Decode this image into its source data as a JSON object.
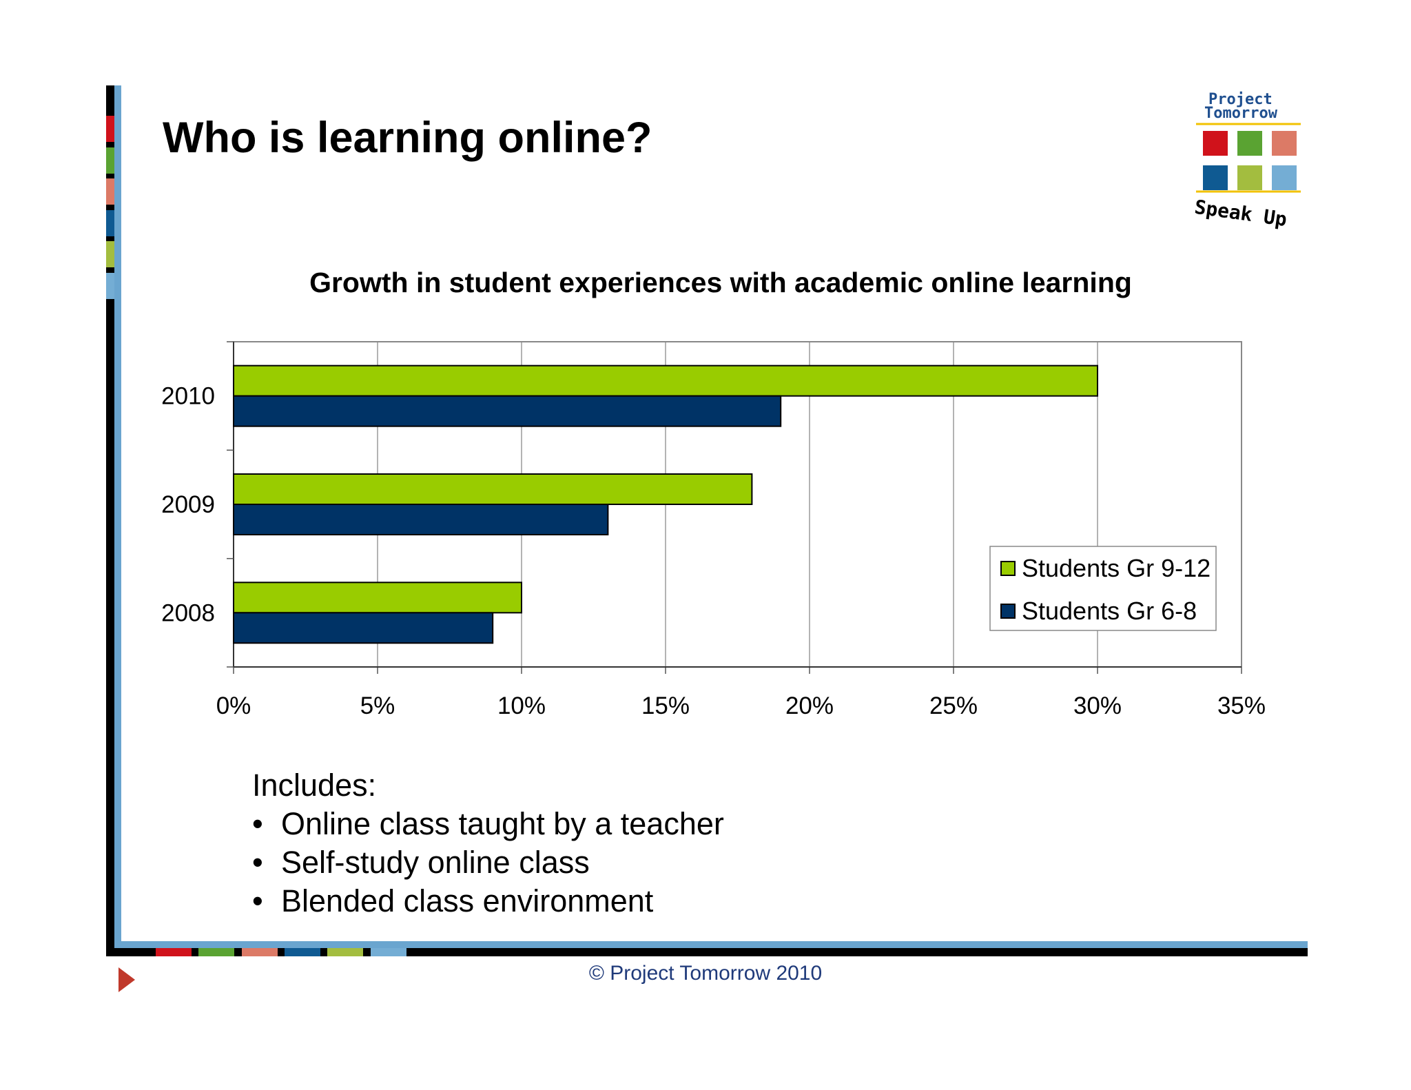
{
  "slide": {
    "title": "Who is learning online?",
    "includes_heading": "Includes:",
    "includes_items": [
      "Online class taught by a teacher",
      "Self-study online class",
      "Blended class environment"
    ],
    "footer": "© Project Tomorrow 2010"
  },
  "logo": {
    "line1": "Project",
    "line2": "Tomorrow",
    "tagline": "Speak Up",
    "swatch_colors": [
      "#d0121b",
      "#5aa332",
      "#dc7a66",
      "#0f5a92",
      "#a3bd3f",
      "#74add4"
    ]
  },
  "chart_data": {
    "type": "bar",
    "orientation": "horizontal",
    "title": "Growth in student experiences with academic online learning",
    "xlabel": "",
    "ylabel": "",
    "categories": [
      "2010",
      "2009",
      "2008"
    ],
    "series": [
      {
        "name": "Students Gr 9-12",
        "color": "#99cc00",
        "values": [
          30,
          18,
          10
        ]
      },
      {
        "name": "Students Gr 6-8",
        "color": "#003366",
        "values": [
          19,
          13,
          9
        ]
      }
    ],
    "xlim": [
      0,
      35
    ],
    "xticks": [
      "0%",
      "5%",
      "10%",
      "15%",
      "20%",
      "25%",
      "30%",
      "35%"
    ],
    "grid": true,
    "legend_position": "bottom-right"
  }
}
